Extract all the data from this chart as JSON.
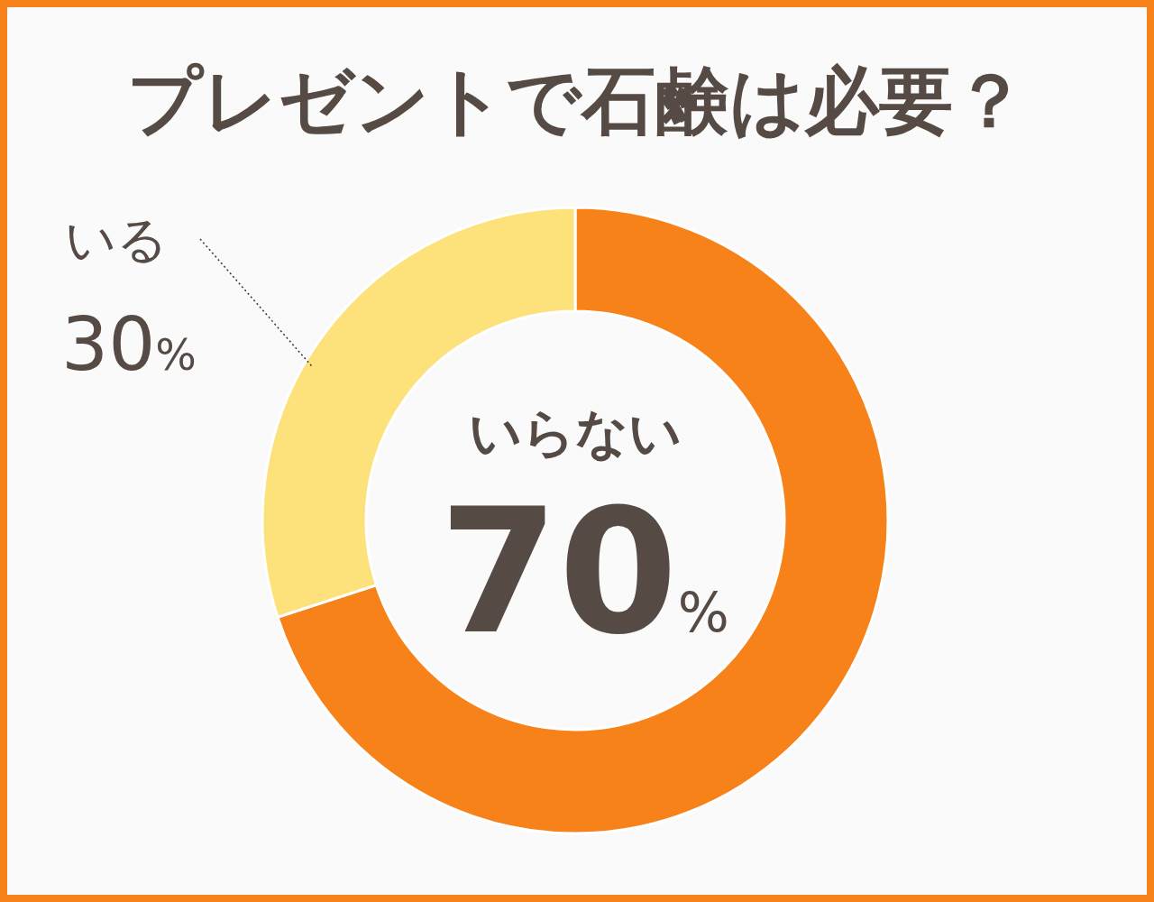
{
  "chart_data": {
    "type": "donut",
    "title": "プレゼントで石鹸は必要？",
    "categories": [
      "いらない",
      "いる"
    ],
    "values": [
      70,
      30
    ],
    "colors": [
      "#f8821a",
      "#fde17a"
    ],
    "value_labels": [
      "70%",
      "30%"
    ]
  }
}
